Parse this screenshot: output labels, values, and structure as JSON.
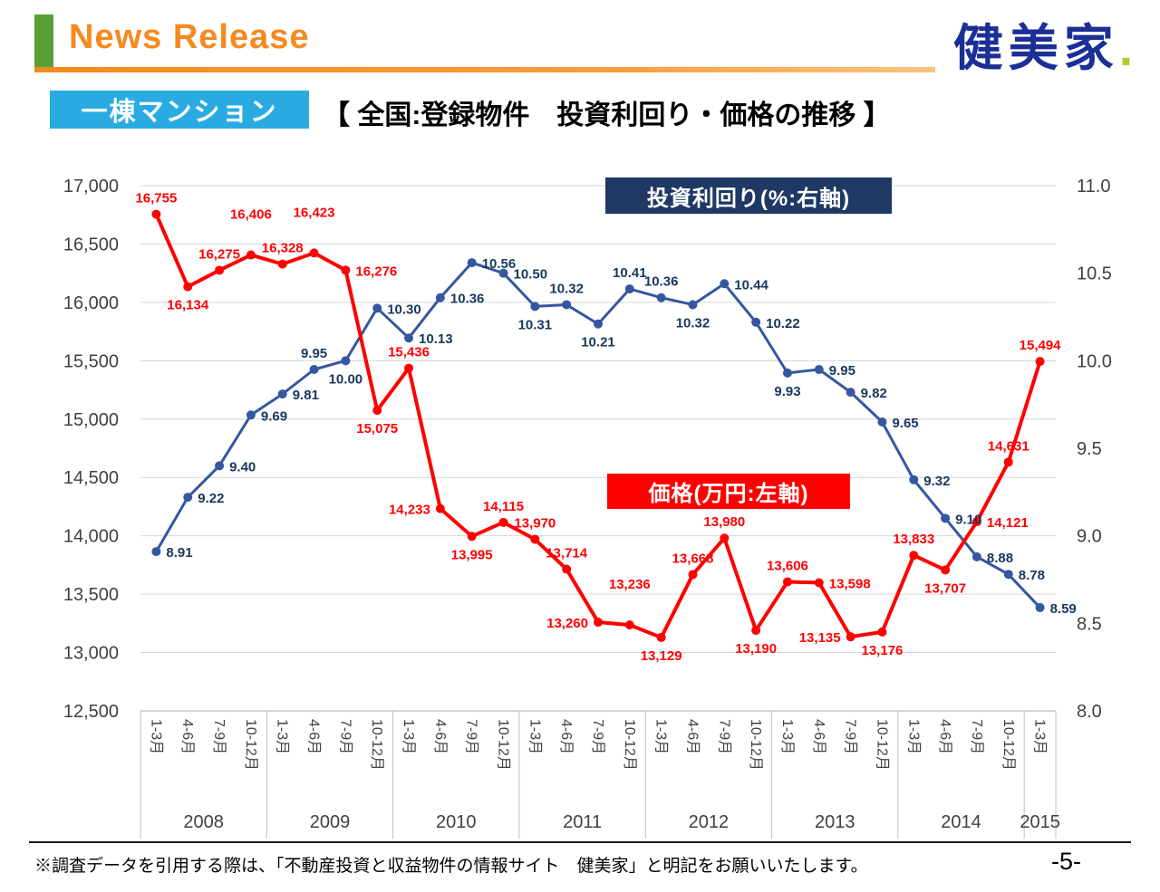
{
  "header": {
    "title": "News Release",
    "logo_text": "健美家",
    "logo_dot": "."
  },
  "badge": "一棟マンション",
  "chart_title": "【 全国:登録物件　投資利回り・価格の推移 】",
  "footnote": "※調査データを引用する際は、「不動産投資と収益物件の情報サイト　健美家」と明記をお願いいたします。",
  "page_number": "-5-",
  "chart_data": {
    "type": "line",
    "title": "全国:登録物件 投資利回り・価格の推移",
    "quarters": [
      "1-3月",
      "4-6月",
      "7-9月",
      "10-12月",
      "1-3月",
      "4-6月",
      "7-9月",
      "10-12月",
      "1-3月",
      "4-6月",
      "7-9月",
      "10-12月",
      "1-3月",
      "4-6月",
      "7-9月",
      "10-12月",
      "1-3月",
      "4-6月",
      "7-9月",
      "10-12月",
      "1-3月",
      "4-6月",
      "7-9月",
      "10-12月",
      "1-3月",
      "4-6月",
      "7-9月",
      "10-12月",
      "1-3月"
    ],
    "year_groups": [
      {
        "label": "2008",
        "span": 4
      },
      {
        "label": "2009",
        "span": 4
      },
      {
        "label": "2010",
        "span": 4
      },
      {
        "label": "2011",
        "span": 4
      },
      {
        "label": "2012",
        "span": 4
      },
      {
        "label": "2013",
        "span": 4
      },
      {
        "label": "2014",
        "span": 4
      },
      {
        "label": "2015",
        "span": 1
      }
    ],
    "left_axis": {
      "min": 12500,
      "max": 17000,
      "step": 500
    },
    "right_axis": {
      "min": 8.0,
      "max": 11.0,
      "step": 0.5
    },
    "legend": {
      "yield": "投資利回り(%:右軸)",
      "price": "価格(万円:左軸)"
    },
    "grid": true,
    "series": [
      {
        "name": "投資利回り(%:右軸)",
        "axis": "right",
        "color": "#3457A0",
        "label_color": "#17375D",
        "line_width": 3,
        "values": [
          8.91,
          9.22,
          9.4,
          9.69,
          9.81,
          9.95,
          10.0,
          10.3,
          10.13,
          10.36,
          10.56,
          10.5,
          10.31,
          10.32,
          10.21,
          10.41,
          10.36,
          10.32,
          10.44,
          10.22,
          9.93,
          9.95,
          9.82,
          9.65,
          9.32,
          9.1,
          8.88,
          8.78,
          8.59
        ],
        "label_pos": [
          "right",
          "right",
          "right",
          "right",
          "right",
          "above",
          "below",
          "right",
          "right",
          "right",
          "right",
          "right",
          "below",
          "above",
          "below",
          "above",
          "above",
          "below",
          "right",
          "right",
          "below",
          "right",
          "right",
          "right",
          "right",
          "right",
          "right",
          "right",
          "right"
        ]
      },
      {
        "name": "価格(万円:左軸)",
        "axis": "left",
        "color": "#FF0000",
        "label_color": "#FF0000",
        "line_width": 4,
        "values": [
          16755,
          16134,
          16275,
          16406,
          16328,
          16423,
          16276,
          15075,
          15436,
          14233,
          13995,
          14115,
          13970,
          13714,
          13260,
          13236,
          13129,
          13668,
          13980,
          13190,
          13606,
          13598,
          13135,
          13176,
          13833,
          13707,
          14121,
          14631,
          15494
        ],
        "label_pos": [
          "above",
          "below",
          "above",
          "above2",
          "above",
          "above2",
          "right",
          "below",
          "above",
          "left",
          "below",
          "above",
          "above",
          "above",
          "left",
          "above2",
          "below",
          "above",
          "above",
          "below",
          "above",
          "right",
          "left",
          "below",
          "above",
          "below",
          "right",
          "above",
          "above"
        ]
      }
    ]
  }
}
